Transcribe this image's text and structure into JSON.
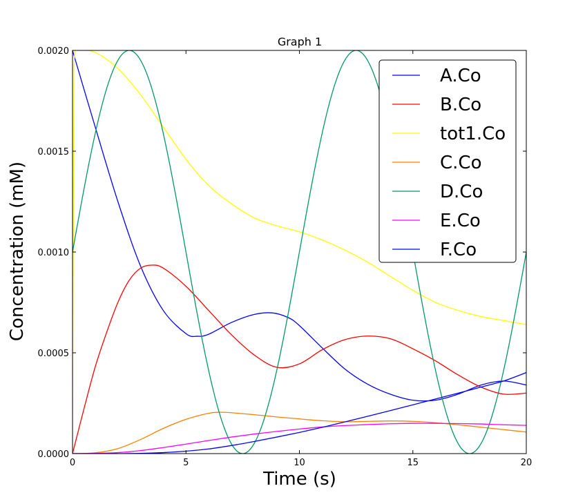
{
  "chart_data": {
    "type": "line",
    "title": "Graph 1",
    "xlabel": "Time (s)",
    "ylabel": "Concentration (mM)",
    "xlim": [
      0,
      20
    ],
    "ylim": [
      0,
      0.002
    ],
    "xticks": [
      0,
      5,
      10,
      15,
      20
    ],
    "xtick_labels": [
      "0",
      "5",
      "10",
      "15",
      "20"
    ],
    "yticks": [
      0,
      0.0005,
      0.001,
      0.0015,
      0.002
    ],
    "ytick_labels": [
      "0.0000",
      "0.0005",
      "0.0010",
      "0.0015",
      "0.0020"
    ],
    "grid": false,
    "legend_position": "top-right",
    "series": [
      {
        "name": "A.Co",
        "color": "#0000ff",
        "x": [
          0,
          1,
          2,
          3,
          4,
          5,
          5.5,
          6,
          7,
          8,
          8.8,
          9.5,
          10,
          11,
          12,
          13,
          14,
          15,
          16,
          17,
          18,
          19,
          20
        ],
        "y": [
          0.002,
          0.00162,
          0.00125,
          0.00093,
          0.00071,
          0.000595,
          0.000582,
          0.000592,
          0.00065,
          0.00069,
          0.000698,
          0.000675,
          0.000635,
          0.000525,
          0.00042,
          0.000345,
          0.000295,
          0.000265,
          0.000265,
          0.000295,
          0.00034,
          0.00036,
          0.00034
        ]
      },
      {
        "name": "B.Co",
        "color": "#ff0000",
        "x": [
          0,
          0.5,
          1,
          1.5,
          2,
          2.5,
          3,
          3.5,
          4,
          5,
          6,
          7,
          8,
          9,
          10,
          11,
          12,
          13,
          14,
          15,
          16,
          17,
          18,
          19,
          20
        ],
        "y": [
          0,
          0.00022,
          0.00043,
          0.0006,
          0.00075,
          0.00086,
          0.00092,
          0.000935,
          0.00092,
          0.00083,
          0.00071,
          0.00059,
          0.00049,
          0.000428,
          0.000445,
          0.000515,
          0.000565,
          0.000583,
          0.00057,
          0.00052,
          0.00046,
          0.00039,
          0.00033,
          0.000295,
          0.0003
        ]
      },
      {
        "name": "tot1.Co",
        "color": "#ffff00",
        "x": [
          0,
          0.05,
          0.1,
          0.3,
          1,
          2,
          3,
          4,
          5,
          6,
          7,
          8,
          9,
          10,
          11,
          12,
          13,
          14,
          15,
          16,
          17,
          18,
          19,
          20
        ],
        "y": [
          0,
          0.0016,
          0.002,
          0.002,
          0.00199,
          0.00191,
          0.00178,
          0.00162,
          0.00146,
          0.00133,
          0.00124,
          0.00117,
          0.00113,
          0.0011,
          0.00106,
          0.00101,
          0.00095,
          0.00088,
          0.00081,
          0.00075,
          0.00071,
          0.00068,
          0.00066,
          0.00064
        ]
      },
      {
        "name": "C.Co",
        "color": "#ff7f00",
        "x": [
          0,
          1,
          2,
          3,
          4,
          5,
          6,
          6.5,
          7,
          8,
          9,
          10,
          11,
          12,
          13,
          14,
          15,
          16,
          17,
          18,
          19,
          20
        ],
        "y": [
          0,
          4e-06,
          2.5e-05,
          7e-05,
          0.000125,
          0.00017,
          0.0002,
          0.000205,
          0.000203,
          0.000193,
          0.000182,
          0.000172,
          0.000163,
          0.000158,
          0.00016,
          0.000162,
          0.00016,
          0.000153,
          0.000143,
          0.000131,
          0.000119,
          0.000107
        ]
      },
      {
        "name": "D.Co",
        "color": "#009966",
        "func": "0.001 + 0.001*sin(2*pi*x/10)"
      },
      {
        "name": "E.Co",
        "color": "#ff00ff",
        "x": [
          0,
          1,
          2,
          3,
          4,
          5,
          6,
          7,
          8,
          9,
          10,
          11,
          12,
          13,
          14,
          15,
          16,
          17,
          18,
          19,
          20
        ],
        "y": [
          0,
          1e-06,
          5e-06,
          1.5e-05,
          3e-05,
          4.7e-05,
          6.5e-05,
          8.2e-05,
          9.7e-05,
          0.00011,
          0.000122,
          0.000132,
          0.000139,
          0.000144,
          0.000148,
          0.00015,
          0.00015,
          0.000149,
          0.000147,
          0.000143,
          0.00014
        ]
      },
      {
        "name": "F.Co",
        "color": "#0000ff",
        "x": [
          0,
          2,
          3,
          4,
          5,
          6,
          7,
          8,
          9,
          10,
          11,
          12,
          13,
          14,
          15,
          16,
          17,
          18,
          19,
          20
        ],
        "y": [
          0,
          0,
          1e-06,
          5e-06,
          1.2e-05,
          2.3e-05,
          4e-05,
          6e-05,
          8.2e-05,
          0.000105,
          0.00013,
          0.000157,
          0.000185,
          0.000213,
          0.000242,
          0.000271,
          0.0003,
          0.00033,
          0.00036,
          0.000402
        ]
      }
    ]
  }
}
